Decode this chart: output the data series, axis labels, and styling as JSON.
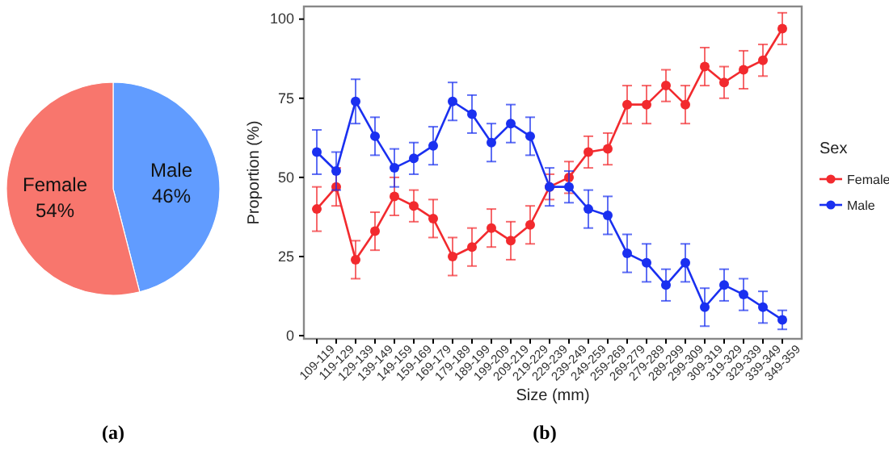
{
  "chart_data": [
    {
      "type": "pie",
      "title": "(a)",
      "categories": [
        "Male",
        "Female"
      ],
      "values": [
        46,
        54
      ],
      "colors": [
        "#619cff",
        "#f8766d"
      ],
      "value_labels": [
        "46%",
        "54%"
      ]
    },
    {
      "type": "line",
      "title": "(b)",
      "xlabel": "Size (mm)",
      "ylabel": "Proportion (%)",
      "legend_title": "Sex",
      "legend": "right",
      "marker": "circle",
      "grid": false,
      "categories": [
        "109-119",
        "119-129",
        "129-139",
        "139-149",
        "149-159",
        "159-169",
        "169-179",
        "179-189",
        "189-199",
        "199-209",
        "209-219",
        "219-229",
        "229-239",
        "239-249",
        "249-259",
        "259-269",
        "269-279",
        "279-289",
        "289-299",
        "299-309",
        "309-319",
        "319-329",
        "329-339",
        "339-349",
        "349-359"
      ],
      "ylim": [
        -1,
        104
      ],
      "yticks": [
        0,
        25,
        50,
        75,
        100
      ],
      "series": [
        {
          "name": "Female",
          "color": "#f22a2e",
          "values": [
            40,
            47,
            24,
            33,
            44,
            41,
            37,
            25,
            28,
            34,
            30,
            35,
            47,
            50,
            58,
            59,
            73,
            73,
            79,
            73,
            85,
            80,
            84,
            87,
            97
          ],
          "errors": [
            7,
            6,
            6,
            6,
            6,
            5,
            6,
            6,
            6,
            6,
            6,
            6,
            4,
            5,
            5,
            5,
            6,
            6,
            5,
            6,
            6,
            5,
            6,
            5,
            5
          ]
        },
        {
          "name": "Male",
          "color": "#1a30f0",
          "values": [
            58,
            52,
            74,
            63,
            53,
            56,
            60,
            74,
            70,
            61,
            67,
            63,
            47,
            47,
            40,
            38,
            26,
            23,
            16,
            23,
            9,
            16,
            13,
            9,
            5
          ],
          "errors": [
            7,
            6,
            7,
            6,
            6,
            5,
            6,
            6,
            6,
            6,
            6,
            6,
            6,
            5,
            6,
            6,
            6,
            6,
            5,
            6,
            6,
            5,
            5,
            5,
            3
          ]
        }
      ]
    }
  ]
}
